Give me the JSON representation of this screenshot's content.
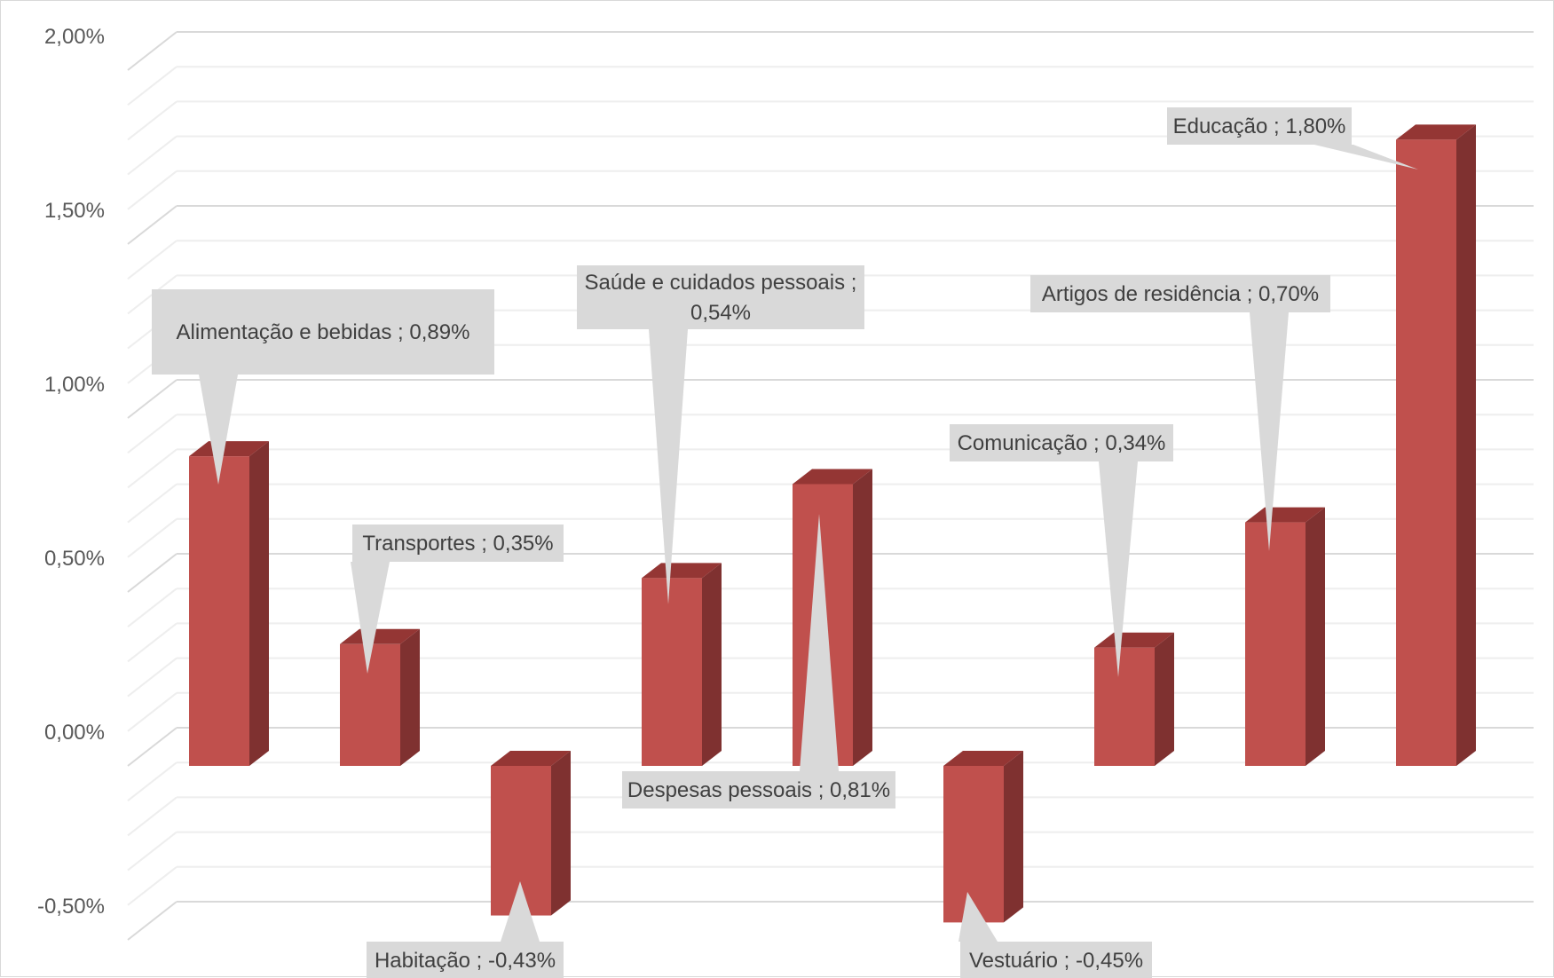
{
  "chart_data": {
    "type": "bar",
    "style": "3d-column",
    "categories": [
      "Alimentação e bebidas",
      "Transportes",
      "Habitação",
      "Saúde e cuidados pessoais",
      "Despesas pessoais",
      "Vestuário",
      "Comunicação",
      "Artigos de residência",
      "Educação"
    ],
    "values": [
      0.89,
      0.35,
      -0.43,
      0.54,
      0.81,
      -0.45,
      0.34,
      0.7,
      1.8
    ],
    "unit": "%",
    "ylim": [
      -0.5,
      2.0
    ],
    "yticks": [
      -0.5,
      0.0,
      0.5,
      1.0,
      1.5,
      2.0
    ],
    "ytick_labels": [
      "-0,50%",
      "0,00%",
      "0,50%",
      "1,00%",
      "1,50%",
      "2,00%"
    ],
    "data_labels": [
      [
        "Alimentação e bebidas ; 0,89%"
      ],
      [
        "Transportes ; 0,35%"
      ],
      [
        "Habitação ; -0,43%"
      ],
      [
        "Saúde e cuidados pessoais ;",
        "0,54%"
      ],
      [
        "Despesas pessoais ; 0,81%"
      ],
      [
        "Vestuário ; -0,45%"
      ],
      [
        "Comunicação ; 0,34%"
      ],
      [
        "Artigos de residência ; 0,70%"
      ],
      [
        "Educação ; 1,80%"
      ]
    ],
    "grid": true,
    "colors": {
      "bar_front": "#c0504d",
      "bar_side": "#7f3130",
      "bar_top": "#943634",
      "callout": "#d9d9d9",
      "gridline": "#e6e6e6"
    }
  }
}
